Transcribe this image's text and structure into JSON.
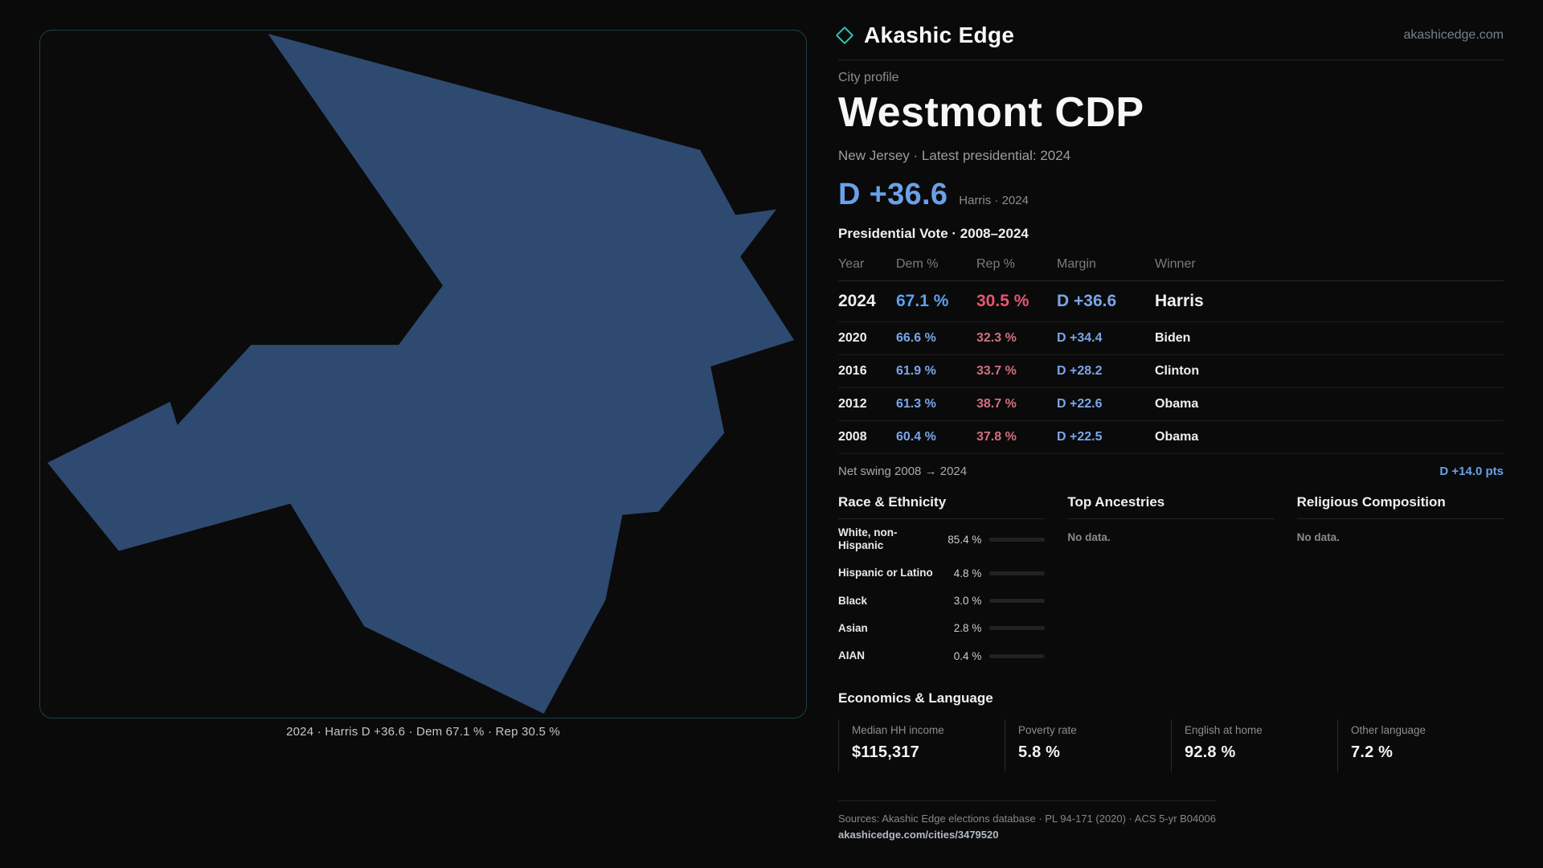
{
  "brand": {
    "name": "Akashic Edge",
    "domain": "akashicedge.com",
    "icon": "diamond-outline",
    "accent_color": "#35c3b2"
  },
  "map": {
    "caption": "2024 · Harris D +36.6 · Dem 67.1 % · Rep 30.5 %",
    "fill_color": "#2e4a70"
  },
  "profile": {
    "kicker": "City profile",
    "title": "Westmont CDP",
    "subtitle": "New Jersey · Latest presidential: 2024",
    "headline_margin": "D +36.6",
    "headline_note": "Harris · 2024"
  },
  "vote_table": {
    "title": "Presidential Vote · 2008–2024",
    "columns": [
      "Year",
      "Dem %",
      "Rep %",
      "Margin",
      "Winner"
    ],
    "rows": [
      {
        "year": "2024",
        "dem": "67.1 %",
        "rep": "30.5 %",
        "margin": "D +36.6",
        "winner": "Harris",
        "emphasis": true
      },
      {
        "year": "2020",
        "dem": "66.6 %",
        "rep": "32.3 %",
        "margin": "D +34.4",
        "winner": "Biden",
        "emphasis": false
      },
      {
        "year": "2016",
        "dem": "61.9 %",
        "rep": "33.7 %",
        "margin": "D +28.2",
        "winner": "Clinton",
        "emphasis": false
      },
      {
        "year": "2012",
        "dem": "61.3 %",
        "rep": "38.7 %",
        "margin": "D +22.6",
        "winner": "Obama",
        "emphasis": false
      },
      {
        "year": "2008",
        "dem": "60.4 %",
        "rep": "37.8 %",
        "margin": "D +22.5",
        "winner": "Obama",
        "emphasis": false
      }
    ]
  },
  "net_swing": {
    "label": "Net swing 2008 → 2024",
    "value": "D +14.0 pts"
  },
  "sections": {
    "race": {
      "title": "Race & Ethnicity",
      "rows": [
        {
          "label": "White, non-Hispanic",
          "value": "85.4 %",
          "pct": 85.4,
          "color": "#aebdd6"
        },
        {
          "label": "Hispanic or Latino",
          "value": "4.8 %",
          "pct": 4.8,
          "color": "#e79b3c"
        },
        {
          "label": "Black",
          "value": "3.0 %",
          "pct": 3.0,
          "color": "#3fbdb0"
        },
        {
          "label": "Asian",
          "value": "2.8 %",
          "pct": 2.8,
          "color": "#57a85a"
        },
        {
          "label": "AIAN",
          "value": "0.4 %",
          "pct": 0.4,
          "color": "#d9634e"
        }
      ]
    },
    "ancestries": {
      "title": "Top Ancestries",
      "empty": "No data."
    },
    "religion": {
      "title": "Religious Composition",
      "empty": "No data."
    }
  },
  "economics": {
    "title": "Economics & Language",
    "stats": [
      {
        "label": "Median HH income",
        "value": "$115,317"
      },
      {
        "label": "Poverty rate",
        "value": "5.8 %"
      },
      {
        "label": "English at home",
        "value": "92.8 %"
      },
      {
        "label": "Other language",
        "value": "7.2 %"
      }
    ]
  },
  "footer": {
    "sources": "Sources: Akashic Edge elections database · PL 94-171 (2020) · ACS 5-yr B04006",
    "permalink": "akashicedge.com/cities/3479520"
  },
  "colors": {
    "dem_blue": "#7aa6e8",
    "dem_blue_bright": "#5d9ff0",
    "rep_red": "#d26f7e",
    "rep_red_bright": "#e85570",
    "headline_blue": "#6aa0e8",
    "map_border": "#1e4046",
    "background": "#0a0a0b"
  }
}
